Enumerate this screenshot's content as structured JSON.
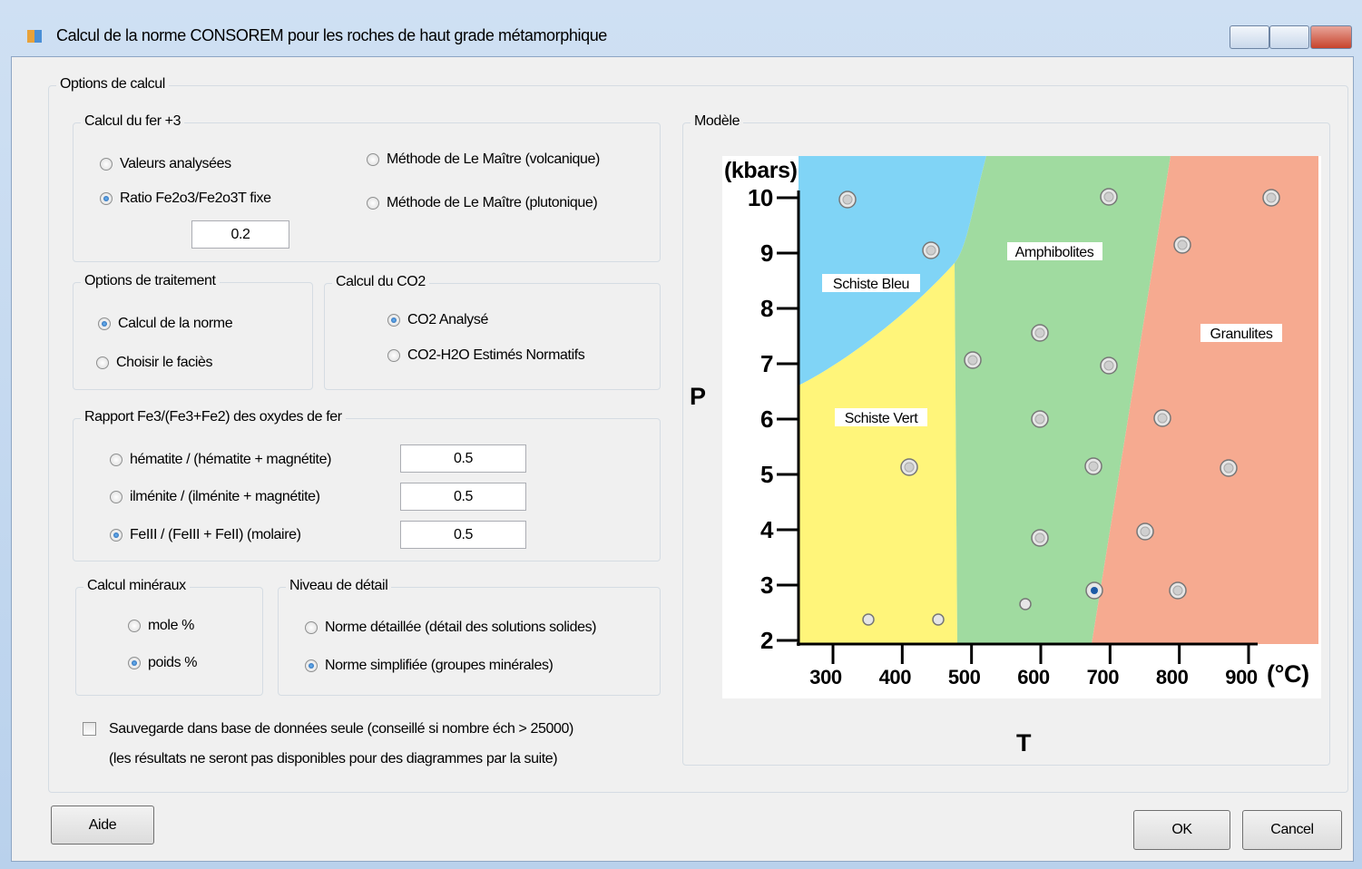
{
  "window": {
    "title": "Calcul de la norme CONSOREM pour les roches de haut grade métamorphique"
  },
  "options": {
    "title": "Options de calcul",
    "fer3": {
      "title": "Calcul du fer +3",
      "choices": [
        "Valeurs analysées",
        "Ratio Fe2o3/Fe2o3T fixe",
        "Méthode de Le Maître (volcanique)",
        "Méthode de Le Maître (plutonique)"
      ],
      "selected": 1,
      "ratio": 0.2
    },
    "traitement": {
      "title": "Options de traitement",
      "choices": [
        "Calcul de la norme",
        "Choisir le faciès"
      ],
      "selected": 0
    },
    "co2": {
      "title": "Calcul du CO2",
      "choices": [
        "CO2 Analysé",
        "CO2-H2O Estimés Normatifs"
      ],
      "selected": 0
    },
    "rapport": {
      "title": "Rapport Fe3/(Fe3+Fe2) des oxydes de fer",
      "choices": [
        "hématite / (hématite + magnétite)",
        "ilménite / (ilménite + magnétite)",
        "FeIII / (FeIII + FeII) (molaire)"
      ],
      "values": [
        0.5,
        0.5,
        0.5
      ],
      "selected": 2
    },
    "mineraux": {
      "title": "Calcul minéraux",
      "choices": [
        "mole %",
        "poids %"
      ],
      "selected": 1
    },
    "detail": {
      "title": "Niveau de détail",
      "choices": [
        "Norme détaillée (détail des solutions solides)",
        "Norme simplifiée (groupes minérales)"
      ],
      "selected": 1
    },
    "sauvegarde": {
      "label": "Sauvegarde dans base de données seule (conseillé si nombre éch > 25000)",
      "note": "(les résultats ne seront pas disponibles pour des diagrammes par la suite)",
      "checked": false
    }
  },
  "model": {
    "title": "Modèle",
    "y_unit": "(kbars)",
    "x_unit": "(°C)",
    "y_label": "P",
    "x_label": "T",
    "yticks": [
      2,
      3,
      4,
      5,
      6,
      7,
      8,
      9,
      10
    ],
    "xticks": [
      300,
      400,
      500,
      600,
      700,
      800,
      900
    ],
    "facies": [
      "Schiste Bleu",
      "Amphibolites",
      "Granulites",
      "Schiste Vert"
    ]
  },
  "buttons": {
    "help": "Aide",
    "ok": "OK",
    "cancel": "Cancel"
  }
}
